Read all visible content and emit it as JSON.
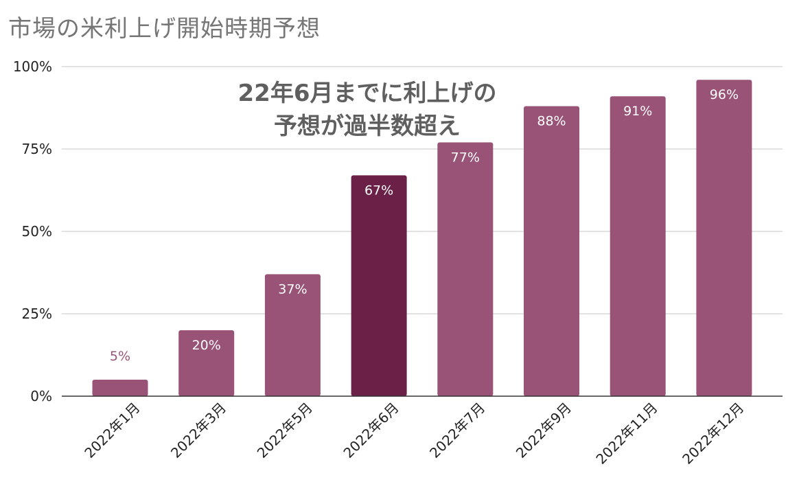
{
  "chart_data": {
    "type": "bar",
    "title": "市場の米利上げ開始時期予想",
    "categories": [
      "2022年1月",
      "2022年3月",
      "2022年5月",
      "2022年6月",
      "2022年7月",
      "2022年9月",
      "2022年11月",
      "2022年12月"
    ],
    "values": [
      5,
      20,
      37,
      67,
      77,
      88,
      91,
      96
    ],
    "data_labels": [
      "5%",
      "20%",
      "37%",
      "67%",
      "77%",
      "88%",
      "91%",
      "96%"
    ],
    "y_ticks": [
      0,
      25,
      50,
      75,
      100
    ],
    "y_tick_labels": [
      "0%",
      "25%",
      "50%",
      "75%",
      "100%"
    ],
    "ylim": [
      0,
      100
    ],
    "xlabel": "",
    "ylabel": "",
    "grid": true,
    "legend": "none",
    "highlight_category": "2022年6月",
    "annotation": [
      "22年6月までに利上げの",
      "予想が過半数超え"
    ],
    "colors": {
      "bar": "#985376",
      "highlight_bar": "#6b2147",
      "inside_label": "#ffffff",
      "outside_label": "#985376",
      "gridline": "#c4c4c4",
      "axis": "#333333",
      "title": "#757575",
      "annotation": "#5f5f5f"
    }
  }
}
